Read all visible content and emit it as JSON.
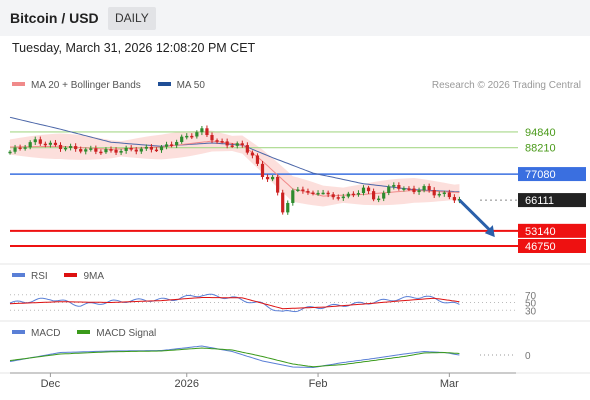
{
  "header": {
    "title": "Bitcoin / USD",
    "badge": "DAILY"
  },
  "timestamp": "Tuesday, March 31, 2026 12:08:20 PM CET",
  "legend": {
    "main": [
      {
        "label": "MA 20 + Bollinger Bands",
        "color": "#f08a8a"
      },
      {
        "label": "MA 50",
        "color": "#1f4e96"
      }
    ],
    "rsi": [
      {
        "label": "RSI",
        "color": "#5a7fd6"
      },
      {
        "label": "9MA",
        "color": "#dd1111"
      }
    ],
    "macd": [
      {
        "label": "MACD",
        "color": "#5a7fd6"
      },
      {
        "label": "MACD Signal",
        "color": "#3a9a1a"
      }
    ]
  },
  "credit": "Research © 2026 Trading Central",
  "colors": {
    "up": "#2e8b2e",
    "down": "#cc2222",
    "resistance": "#a8d88a",
    "pivot": "#3a6fe0",
    "support": "#ee1111",
    "last": "#222222",
    "arrow": "#2a5faa"
  },
  "chart_data": {
    "type": "candlestick",
    "x_tick_labels": [
      "Dec",
      "2026",
      "Feb",
      "Mar"
    ],
    "price_levels": [
      {
        "label": "94840",
        "value": 94840,
        "kind": "resistance"
      },
      {
        "label": "88210",
        "value": 88210,
        "kind": "resistance"
      },
      {
        "label": "77080",
        "value": 77080,
        "kind": "pivot"
      },
      {
        "label": "66111",
        "value": 66111,
        "kind": "last"
      },
      {
        "label": "53140",
        "value": 53140,
        "kind": "support"
      },
      {
        "label": "46750",
        "value": 46750,
        "kind": "support"
      }
    ],
    "close_path": [
      [
        0,
        86500
      ],
      [
        5,
        91000
      ],
      [
        10,
        88500
      ],
      [
        15,
        87200
      ],
      [
        20,
        86800
      ],
      [
        25,
        87500
      ],
      [
        30,
        88000
      ],
      [
        35,
        93000
      ],
      [
        38,
        95500
      ],
      [
        41,
        90500
      ],
      [
        44,
        89500
      ],
      [
        46,
        89000
      ],
      [
        48,
        85000
      ],
      [
        50,
        76000
      ],
      [
        52,
        75500
      ],
      [
        54,
        61500
      ],
      [
        56,
        69500
      ],
      [
        58,
        70800
      ],
      [
        60,
        68200
      ],
      [
        62,
        70100
      ],
      [
        64,
        66500
      ],
      [
        66,
        68300
      ],
      [
        68,
        68000
      ],
      [
        70,
        71700
      ],
      [
        72,
        66300
      ],
      [
        74,
        69000
      ],
      [
        76,
        72800
      ],
      [
        78,
        70500
      ],
      [
        80,
        70200
      ],
      [
        82,
        71200
      ],
      [
        84,
        69000
      ],
      [
        86,
        68400
      ],
      [
        88,
        66800
      ],
      [
        89,
        66111
      ]
    ],
    "ma20_path": [
      [
        0,
        88500
      ],
      [
        10,
        88800
      ],
      [
        20,
        87500
      ],
      [
        30,
        88500
      ],
      [
        40,
        91000
      ],
      [
        46,
        89500
      ],
      [
        50,
        82500
      ],
      [
        56,
        70800
      ],
      [
        62,
        67800
      ],
      [
        70,
        68500
      ],
      [
        80,
        70200
      ],
      [
        89,
        69300
      ]
    ],
    "ma50_path": [
      [
        0,
        101000
      ],
      [
        10,
        96000
      ],
      [
        20,
        90500
      ],
      [
        30,
        88800
      ],
      [
        40,
        90200
      ],
      [
        46,
        89300
      ],
      [
        52,
        84000
      ],
      [
        60,
        77500
      ],
      [
        70,
        73000
      ],
      [
        80,
        70500
      ],
      [
        89,
        69600
      ]
    ],
    "forecast": {
      "from": [
        89,
        66111
      ],
      "to": [
        96,
        50500
      ]
    },
    "rsi": {
      "levels": [
        {
          "label": "70",
          "value": 70
        },
        {
          "label": "50",
          "value": 50
        },
        {
          "label": "30",
          "value": 30
        }
      ],
      "rsi_path": [
        [
          0,
          48
        ],
        [
          8,
          60
        ],
        [
          14,
          43
        ],
        [
          20,
          52
        ],
        [
          26,
          56
        ],
        [
          32,
          58
        ],
        [
          38,
          70
        ],
        [
          44,
          62
        ],
        [
          50,
          46
        ],
        [
          54,
          24
        ],
        [
          58,
          34
        ],
        [
          64,
          41
        ],
        [
          70,
          48
        ],
        [
          76,
          58
        ],
        [
          82,
          66
        ],
        [
          86,
          53
        ],
        [
          89,
          43
        ]
      ],
      "ma9_path": [
        [
          0,
          47
        ],
        [
          10,
          52
        ],
        [
          20,
          50
        ],
        [
          30,
          55
        ],
        [
          38,
          63
        ],
        [
          46,
          62
        ],
        [
          54,
          34
        ],
        [
          62,
          38
        ],
        [
          70,
          46
        ],
        [
          78,
          55
        ],
        [
          84,
          61
        ],
        [
          89,
          52
        ]
      ]
    },
    "macd": {
      "levels": [
        {
          "label": "0",
          "value": 0
        }
      ],
      "macd_path": [
        [
          0,
          -1300
        ],
        [
          10,
          500
        ],
        [
          20,
          800
        ],
        [
          30,
          900
        ],
        [
          38,
          1800
        ],
        [
          44,
          700
        ],
        [
          50,
          -1200
        ],
        [
          56,
          -2400
        ],
        [
          60,
          -2500
        ],
        [
          66,
          -1500
        ],
        [
          72,
          -700
        ],
        [
          78,
          200
        ],
        [
          82,
          700
        ],
        [
          86,
          500
        ],
        [
          89,
          0
        ]
      ],
      "signal_path": [
        [
          0,
          -1100
        ],
        [
          10,
          200
        ],
        [
          20,
          650
        ],
        [
          30,
          800
        ],
        [
          38,
          1400
        ],
        [
          44,
          1000
        ],
        [
          50,
          -300
        ],
        [
          56,
          -1800
        ],
        [
          60,
          -2350
        ],
        [
          66,
          -1900
        ],
        [
          72,
          -1100
        ],
        [
          78,
          -300
        ],
        [
          82,
          400
        ],
        [
          86,
          500
        ],
        [
          89,
          300
        ]
      ]
    }
  }
}
